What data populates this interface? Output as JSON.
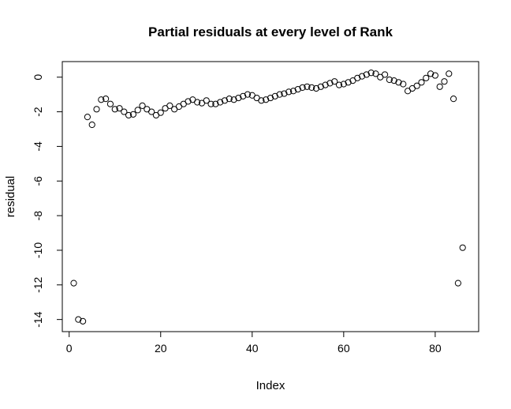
{
  "chart_data": {
    "type": "scatter",
    "title": "Partial residuals at every level of Rank",
    "xlabel": "Index",
    "ylabel": "residual",
    "xlim": [
      -1.5,
      89.5
    ],
    "ylim": [
      -14.7,
      0.9
    ],
    "x_ticks": [
      0,
      20,
      40,
      60,
      80
    ],
    "y_ticks": [
      0,
      -2,
      -4,
      -6,
      -8,
      -10,
      -12,
      -14
    ],
    "grid": false,
    "legend": "none",
    "marker": "open-circle",
    "x": [
      1,
      2,
      3,
      4,
      5,
      6,
      7,
      8,
      9,
      10,
      11,
      12,
      13,
      14,
      15,
      16,
      17,
      18,
      19,
      20,
      21,
      22,
      23,
      24,
      25,
      26,
      27,
      28,
      29,
      30,
      31,
      32,
      33,
      34,
      35,
      36,
      37,
      38,
      39,
      40,
      41,
      42,
      43,
      44,
      45,
      46,
      47,
      48,
      49,
      50,
      51,
      52,
      53,
      54,
      55,
      56,
      57,
      58,
      59,
      60,
      61,
      62,
      63,
      64,
      65,
      66,
      67,
      68,
      69,
      70,
      71,
      72,
      73,
      74,
      75,
      76,
      77,
      78,
      79,
      80,
      81,
      82,
      83,
      84,
      85,
      86
    ],
    "y": [
      -11.9,
      -14.0,
      -14.1,
      -2.3,
      -2.75,
      -1.85,
      -1.3,
      -1.25,
      -1.55,
      -1.85,
      -1.8,
      -2.0,
      -2.2,
      -2.15,
      -1.9,
      -1.65,
      -1.85,
      -2.0,
      -2.2,
      -2.05,
      -1.8,
      -1.65,
      -1.85,
      -1.7,
      -1.55,
      -1.4,
      -1.3,
      -1.45,
      -1.5,
      -1.35,
      -1.55,
      -1.55,
      -1.45,
      -1.35,
      -1.25,
      -1.3,
      -1.2,
      -1.1,
      -1.0,
      -1.05,
      -1.2,
      -1.35,
      -1.3,
      -1.2,
      -1.1,
      -1.0,
      -0.95,
      -0.85,
      -0.8,
      -0.7,
      -0.6,
      -0.55,
      -0.6,
      -0.65,
      -0.55,
      -0.45,
      -0.35,
      -0.25,
      -0.45,
      -0.4,
      -0.3,
      -0.2,
      -0.05,
      0.05,
      0.15,
      0.25,
      0.2,
      0.0,
      0.15,
      -0.15,
      -0.2,
      -0.3,
      -0.4,
      -0.8,
      -0.65,
      -0.5,
      -0.3,
      -0.05,
      0.2,
      0.1,
      -0.55,
      -0.25,
      0.2,
      -1.25,
      -11.9,
      -9.85
    ]
  }
}
